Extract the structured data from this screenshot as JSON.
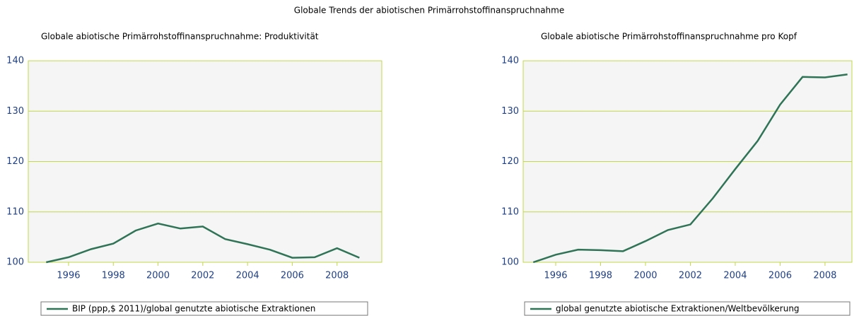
{
  "title": "Globale Trends der abiotischen Primärrohstoffinanspruchnahme",
  "chart_data": [
    {
      "type": "line",
      "title": "Globale abiotische Primärrohstoffinanspruchnahme: Produktivität",
      "x": [
        1995,
        1996,
        1997,
        1998,
        1999,
        2000,
        2001,
        2002,
        2003,
        2004,
        2005,
        2006,
        2007,
        2008,
        2009
      ],
      "series": [
        {
          "name": "BIP (ppp,$ 2011)/global genutzte abiotische Extraktionen",
          "color": "#2f7457",
          "values": [
            100,
            101,
            102.6,
            103.7,
            106.3,
            107.7,
            106.7,
            107.1,
            104.6,
            103.6,
            102.5,
            100.9,
            101,
            102.8,
            100.9
          ]
        }
      ],
      "xlim": [
        1994.2,
        2010
      ],
      "xticks": [
        1996,
        1998,
        2000,
        2002,
        2004,
        2006,
        2008
      ],
      "ylim": [
        100,
        140
      ],
      "yticks": [
        100,
        110,
        120,
        130,
        140
      ],
      "grid": true
    },
    {
      "type": "line",
      "title": "Globale abiotische Primärrohstoffinanspruchnahme pro Kopf",
      "x": [
        1995,
        1996,
        1997,
        1998,
        1999,
        2000,
        2001,
        2002,
        2003,
        2004,
        2005,
        2006,
        2007,
        2008,
        2009
      ],
      "series": [
        {
          "name": "global genutzte abiotische Extraktionen/Weltbevölkerung",
          "color": "#2f7457",
          "values": [
            100,
            101.5,
            102.5,
            102.4,
            102.2,
            104.2,
            106.4,
            107.5,
            112.7,
            118.5,
            124.1,
            131.3,
            136.8,
            136.7,
            137.3
          ]
        }
      ],
      "xlim": [
        1994.55,
        2009.2
      ],
      "xticks": [
        1996,
        1998,
        2000,
        2002,
        2004,
        2006,
        2008
      ],
      "ylim": [
        100,
        140
      ],
      "yticks": [
        100,
        110,
        120,
        130,
        140
      ],
      "grid": true
    }
  ]
}
